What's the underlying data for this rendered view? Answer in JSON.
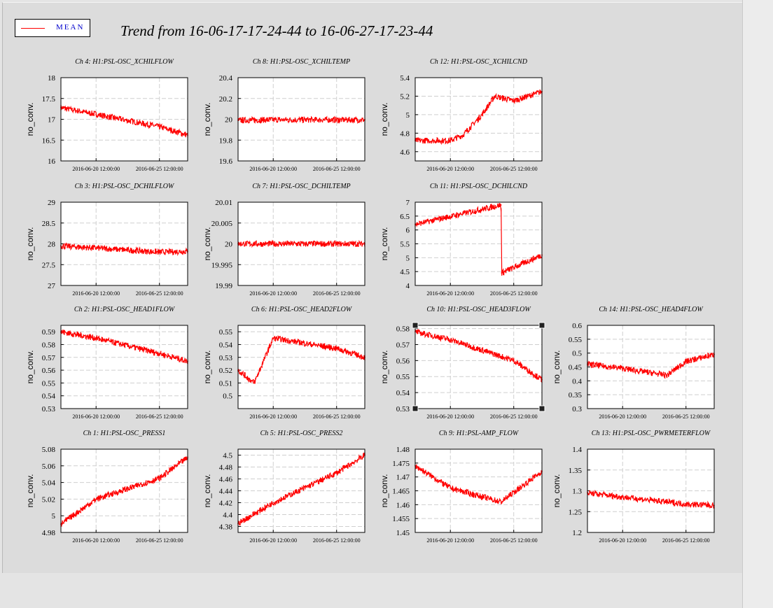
{
  "legend": {
    "label": "MEAN",
    "color": "#ff0000"
  },
  "title": "Trend from 16-06-17-17-24-44 to 16-06-27-17-23-44",
  "line_color": "#ff0000",
  "chart_data": [
    {
      "type": "line",
      "title": "Ch 4: H1:PSL-OSC_XCHILFLOW",
      "ylabel": "no_conv.",
      "ylim": [
        16,
        18
      ],
      "yticks": [
        "16",
        "16.5",
        "17",
        "17.5",
        "18"
      ],
      "xticks": [
        "2016-06-20 12:00:00",
        "2016-06-25 12:00:00"
      ],
      "x": [
        "2016-06-17 17:24:44",
        "2016-06-20 12:00:00",
        "2016-06-25 12:00:00",
        "2016-06-27 17:23:44"
      ],
      "values": [
        17.28,
        17.12,
        16.82,
        16.62
      ]
    },
    {
      "type": "line",
      "title": "Ch 8: H1:PSL-OSC_XCHILTEMP",
      "ylabel": "no_conv.",
      "ylim": [
        19.6,
        20.4
      ],
      "yticks": [
        "19.6",
        "19.8",
        "20",
        "20.2",
        "20.4"
      ],
      "xticks": [
        "2016-06-20 12:00:00",
        "2016-06-25 12:00:00"
      ],
      "x": [
        "2016-06-17 17:24:44",
        "2016-06-20 12:00:00",
        "2016-06-25 12:00:00",
        "2016-06-27 17:23:44"
      ],
      "values": [
        19.99,
        19.995,
        19.995,
        19.995
      ]
    },
    {
      "type": "line",
      "title": "Ch 12: H1:PSL-OSC_XCHILCND",
      "ylabel": "no_conv.",
      "ylim": [
        4.5,
        5.4
      ],
      "yticks": [
        "4.6",
        "4.8",
        "5",
        "5.2",
        "5.4"
      ],
      "xticks": [
        "2016-06-20 12:00:00",
        "2016-06-25 12:00:00"
      ],
      "x": [
        "2016-06-17 17:24:44",
        "2016-06-20 12:00:00",
        "2016-06-21 12:00:00",
        "2016-06-23 00:00:00",
        "2016-06-24 00:00:00",
        "2016-06-25 12:00:00",
        "2016-06-27 17:23:44"
      ],
      "values": [
        4.72,
        4.72,
        4.78,
        5.0,
        5.2,
        5.15,
        5.25
      ]
    },
    {
      "type": "line",
      "title": "Ch 3: H1:PSL-OSC_DCHILFLOW",
      "ylabel": "no_conv.",
      "ylim": [
        27,
        29
      ],
      "yticks": [
        "27",
        "27.5",
        "28",
        "28.5",
        "29"
      ],
      "xticks": [
        "2016-06-20 12:00:00",
        "2016-06-25 12:00:00"
      ],
      "x": [
        "2016-06-17 17:24:44",
        "2016-06-20 12:00:00",
        "2016-06-25 12:00:00",
        "2016-06-27 17:23:44"
      ],
      "values": [
        27.95,
        27.9,
        27.8,
        27.82
      ]
    },
    {
      "type": "line",
      "title": "Ch 7: H1:PSL-OSC_DCHILTEMP",
      "ylabel": "no_conv.",
      "ylim": [
        19.99,
        20.01
      ],
      "yticks": [
        "19.99",
        "19.995",
        "20",
        "20.005",
        "20.01"
      ],
      "xticks": [
        "2016-06-20 12:00:00",
        "2016-06-25 12:00:00"
      ],
      "x": [
        "2016-06-17 17:24:44",
        "2016-06-27 17:23:44"
      ],
      "values": [
        20.0,
        20.0
      ]
    },
    {
      "type": "line",
      "title": "Ch 11: H1:PSL-OSC_DCHILCND",
      "ylabel": "no_conv.",
      "ylim": [
        4,
        7
      ],
      "yticks": [
        "4",
        "4.5",
        "5",
        "5.5",
        "6",
        "6.5",
        "7"
      ],
      "xticks": [
        "2016-06-20 12:00:00",
        "2016-06-25 12:00:00"
      ],
      "x": [
        "2016-06-17 17:24:44",
        "2016-06-24 12:00:00",
        "2016-06-24 13:00:00",
        "2016-06-27 17:23:44"
      ],
      "values": [
        6.2,
        6.9,
        4.45,
        5.1
      ]
    },
    {
      "type": "line",
      "title": "Ch 2: H1:PSL-OSC_HEAD1FLOW",
      "ylabel": "no_conv.",
      "ylim": [
        0.53,
        0.595
      ],
      "yticks": [
        "0.53",
        "0.54",
        "0.55",
        "0.56",
        "0.57",
        "0.58",
        "0.59"
      ],
      "xticks": [
        "2016-06-20 12:00:00",
        "2016-06-25 12:00:00"
      ],
      "x": [
        "2016-06-17 17:24:44",
        "2016-06-20 12:00:00",
        "2016-06-25 12:00:00",
        "2016-06-27 17:23:44"
      ],
      "values": [
        0.59,
        0.585,
        0.573,
        0.567
      ]
    },
    {
      "type": "line",
      "title": "Ch 6: H1:PSL-OSC_HEAD2FLOW",
      "ylabel": "no_conv.",
      "ylim": [
        0.49,
        0.555
      ],
      "yticks": [
        "0.5",
        "0.51",
        "0.52",
        "0.53",
        "0.54",
        "0.55"
      ],
      "xticks": [
        "2016-06-20 12:00:00",
        "2016-06-25 12:00:00"
      ],
      "x": [
        "2016-06-17 17:24:44",
        "2016-06-19 00:00:00",
        "2016-06-20 12:00:00",
        "2016-06-25 12:00:00",
        "2016-06-27 17:23:44"
      ],
      "values": [
        0.52,
        0.51,
        0.545,
        0.537,
        0.53
      ]
    },
    {
      "type": "line",
      "title": "Ch 10: H1:PSL-OSC_HEAD3FLOW",
      "ylabel": "no_conv.",
      "ylim": [
        0.53,
        0.582
      ],
      "yticks": [
        "0.53",
        "0.54",
        "0.55",
        "0.56",
        "0.57",
        "0.58"
      ],
      "xticks": [
        "2016-06-20 12:00:00",
        "2016-06-25 12:00:00"
      ],
      "x": [
        "2016-06-17 17:24:44",
        "2016-06-20 12:00:00",
        "2016-06-25 12:00:00",
        "2016-06-27 17:23:44"
      ],
      "values": [
        0.578,
        0.573,
        0.56,
        0.548
      ]
    },
    {
      "type": "line",
      "title": "Ch 14: H1:PSL-OSC_HEAD4FLOW",
      "ylabel": "no_conv.",
      "ylim": [
        0.3,
        0.6
      ],
      "yticks": [
        "0.3",
        "0.35",
        "0.4",
        "0.45",
        "0.5",
        "0.55",
        "0.6"
      ],
      "xticks": [
        "2016-06-20 12:00:00",
        "2016-06-25 12:00:00"
      ],
      "x": [
        "2016-06-17 17:24:44",
        "2016-06-20 12:00:00",
        "2016-06-24 00:00:00",
        "2016-06-25 12:00:00",
        "2016-06-27 17:23:44"
      ],
      "values": [
        0.46,
        0.445,
        0.42,
        0.47,
        0.495
      ]
    },
    {
      "type": "line",
      "title": "Ch 1: H1:PSL-OSC_PRESS1",
      "ylabel": "no_conv.",
      "ylim": [
        4.98,
        5.08
      ],
      "yticks": [
        "4.98",
        "5",
        "5.02",
        "5.04",
        "5.06",
        "5.08"
      ],
      "xticks": [
        "2016-06-20 12:00:00",
        "2016-06-25 12:00:00"
      ],
      "x": [
        "2016-06-17 17:24:44",
        "2016-06-20 12:00:00",
        "2016-06-25 12:00:00",
        "2016-06-27 17:23:44"
      ],
      "values": [
        4.99,
        5.02,
        5.045,
        5.07
      ]
    },
    {
      "type": "line",
      "title": "Ch 5: H1:PSL-OSC_PRESS2",
      "ylabel": "no_conv.",
      "ylim": [
        4.37,
        4.51
      ],
      "yticks": [
        "4.38",
        "4.4",
        "4.42",
        "4.44",
        "4.46",
        "4.48",
        "4.5"
      ],
      "xticks": [
        "2016-06-20 12:00:00",
        "2016-06-25 12:00:00"
      ],
      "x": [
        "2016-06-17 17:24:44",
        "2016-06-20 12:00:00",
        "2016-06-25 12:00:00",
        "2016-06-27 17:23:44"
      ],
      "values": [
        4.385,
        4.42,
        4.47,
        4.5
      ]
    },
    {
      "type": "line",
      "title": "Ch 9: H1:PSL-AMP_FLOW",
      "ylabel": "no_conv.",
      "ylim": [
        1.45,
        1.48
      ],
      "yticks": [
        "1.45",
        "1.455",
        "1.46",
        "1.465",
        "1.47",
        "1.475",
        "1.48"
      ],
      "xticks": [
        "2016-06-20 12:00:00",
        "2016-06-25 12:00:00"
      ],
      "x": [
        "2016-06-17 17:24:44",
        "2016-06-20 12:00:00",
        "2016-06-24 12:00:00",
        "2016-06-27 17:23:44"
      ],
      "values": [
        1.474,
        1.466,
        1.461,
        1.472
      ]
    },
    {
      "type": "line",
      "title": "Ch 13: H1:PSL-OSC_PWRMETERFLOW",
      "ylabel": "no_conv.",
      "ylim": [
        1.2,
        1.4
      ],
      "yticks": [
        "1.2",
        "1.25",
        "1.3",
        "1.35",
        "1.4"
      ],
      "xticks": [
        "2016-06-20 12:00:00",
        "2016-06-25 12:00:00"
      ],
      "x": [
        "2016-06-17 17:24:44",
        "2016-06-20 12:00:00",
        "2016-06-25 12:00:00",
        "2016-06-27 17:23:44"
      ],
      "values": [
        1.295,
        1.285,
        1.268,
        1.265
      ]
    }
  ]
}
